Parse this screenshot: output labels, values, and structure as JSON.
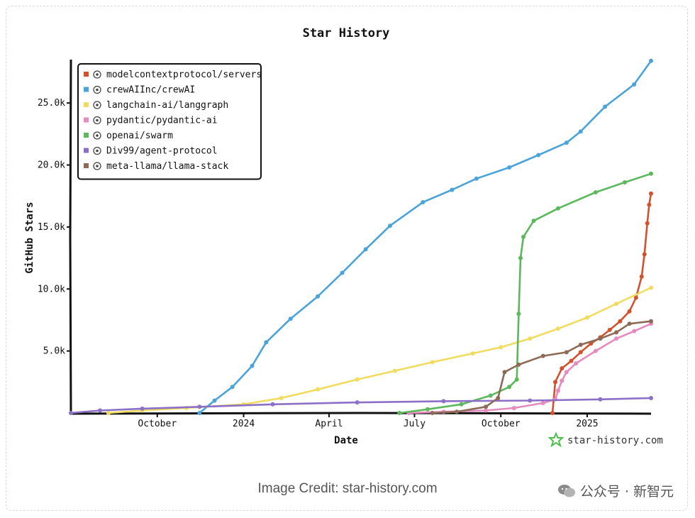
{
  "chart_data": {
    "type": "line",
    "title": "Star History",
    "xlabel": "Date",
    "ylabel": "GitHub Stars",
    "x_range": [
      "2023-07-01",
      "2025-03-10"
    ],
    "ylim": [
      0,
      28500
    ],
    "x_ticks": [
      {
        "label": "October",
        "date": "2023-10-01"
      },
      {
        "label": "2024",
        "date": "2024-01-01"
      },
      {
        "label": "April",
        "date": "2024-04-01"
      },
      {
        "label": "July",
        "date": "2024-07-01"
      },
      {
        "label": "October",
        "date": "2024-10-01"
      },
      {
        "label": "2025",
        "date": "2025-01-01"
      }
    ],
    "y_ticks": [
      {
        "label": "5.0k",
        "value": 5000
      },
      {
        "label": "10.0k",
        "value": 10000
      },
      {
        "label": "15.0k",
        "value": 15000
      },
      {
        "label": "20.0k",
        "value": 20000
      },
      {
        "label": "25.0k",
        "value": 25000
      }
    ],
    "legend_position": "top-left",
    "series": [
      {
        "name": "modelcontextprotocol/servers",
        "color": "#d2522e",
        "icon": "mcp-logo-icon",
        "points": [
          [
            "2024-11-25",
            0
          ],
          [
            "2024-11-28",
            2500
          ],
          [
            "2024-12-05",
            3600
          ],
          [
            "2024-12-15",
            4200
          ],
          [
            "2024-12-25",
            4900
          ],
          [
            "2025-01-05",
            5600
          ],
          [
            "2025-01-15",
            6100
          ],
          [
            "2025-01-25",
            6700
          ],
          [
            "2025-02-05",
            7400
          ],
          [
            "2025-02-15",
            8200
          ],
          [
            "2025-02-22",
            9300
          ],
          [
            "2025-02-28",
            11000
          ],
          [
            "2025-03-03",
            12800
          ],
          [
            "2025-03-06",
            15300
          ],
          [
            "2025-03-08",
            16800
          ],
          [
            "2025-03-10",
            17700
          ]
        ]
      },
      {
        "name": "crewAIInc/crewAI",
        "color": "#4aa3d9",
        "icon": "crewai-logo-icon",
        "points": [
          [
            "2023-11-15",
            0
          ],
          [
            "2023-12-01",
            1000
          ],
          [
            "2023-12-20",
            2100
          ],
          [
            "2024-01-10",
            3800
          ],
          [
            "2024-01-25",
            5700
          ],
          [
            "2024-02-20",
            7600
          ],
          [
            "2024-03-20",
            9400
          ],
          [
            "2024-04-15",
            11300
          ],
          [
            "2024-05-10",
            13200
          ],
          [
            "2024-06-05",
            15100
          ],
          [
            "2024-07-10",
            17000
          ],
          [
            "2024-08-10",
            18000
          ],
          [
            "2024-09-05",
            18900
          ],
          [
            "2024-10-10",
            19800
          ],
          [
            "2024-11-10",
            20800
          ],
          [
            "2024-12-10",
            21800
          ],
          [
            "2024-12-25",
            22700
          ],
          [
            "2025-01-20",
            24700
          ],
          [
            "2025-02-20",
            26500
          ],
          [
            "2025-03-10",
            28400
          ]
        ]
      },
      {
        "name": "langchain-ai/langgraph",
        "color": "#f0dc5f",
        "icon": "langgraph-logo-icon",
        "points": [
          [
            "2023-08-10",
            0
          ],
          [
            "2023-09-15",
            200
          ],
          [
            "2023-11-01",
            400
          ],
          [
            "2024-01-01",
            700
          ],
          [
            "2024-02-10",
            1200
          ],
          [
            "2024-03-20",
            1900
          ],
          [
            "2024-05-01",
            2700
          ],
          [
            "2024-06-10",
            3400
          ],
          [
            "2024-07-20",
            4100
          ],
          [
            "2024-09-01",
            4800
          ],
          [
            "2024-10-01",
            5300
          ],
          [
            "2024-11-01",
            6000
          ],
          [
            "2024-12-01",
            6800
          ],
          [
            "2025-01-01",
            7700
          ],
          [
            "2025-02-01",
            8800
          ],
          [
            "2025-03-10",
            10100
          ]
        ]
      },
      {
        "name": "pydantic/pydantic-ai",
        "color": "#e58bbf",
        "icon": "pydantic-logo-icon",
        "points": [
          [
            "2024-06-25",
            0
          ],
          [
            "2024-08-01",
            100
          ],
          [
            "2024-09-15",
            200
          ],
          [
            "2024-10-15",
            400
          ],
          [
            "2024-11-15",
            800
          ],
          [
            "2024-11-28",
            1100
          ],
          [
            "2024-12-01",
            1800
          ],
          [
            "2024-12-05",
            2600
          ],
          [
            "2024-12-10",
            3300
          ],
          [
            "2024-12-20",
            4000
          ],
          [
            "2025-01-10",
            5000
          ],
          [
            "2025-02-01",
            6000
          ],
          [
            "2025-02-20",
            6600
          ],
          [
            "2025-03-10",
            7200
          ]
        ]
      },
      {
        "name": "openai/swarm",
        "color": "#5cb85c",
        "icon": "openai-logo-icon",
        "points": [
          [
            "2024-06-15",
            0
          ],
          [
            "2024-07-15",
            300
          ],
          [
            "2024-08-20",
            700
          ],
          [
            "2024-09-20",
            1400
          ],
          [
            "2024-10-10",
            2100
          ],
          [
            "2024-10-18",
            2700
          ],
          [
            "2024-10-20",
            8000
          ],
          [
            "2024-10-22",
            12500
          ],
          [
            "2024-10-25",
            14200
          ],
          [
            "2024-11-05",
            15500
          ],
          [
            "2024-12-01",
            16500
          ],
          [
            "2025-01-10",
            17800
          ],
          [
            "2025-02-10",
            18600
          ],
          [
            "2025-03-10",
            19300
          ]
        ]
      },
      {
        "name": "Div99/agent-protocol",
        "color": "#8c6fc7",
        "icon": "agent-protocol-logo-icon",
        "points": [
          [
            "2023-07-01",
            0
          ],
          [
            "2023-08-01",
            200
          ],
          [
            "2023-09-15",
            350
          ],
          [
            "2023-11-15",
            500
          ],
          [
            "2024-02-01",
            700
          ],
          [
            "2024-05-01",
            850
          ],
          [
            "2024-08-01",
            950
          ],
          [
            "2024-11-01",
            1000
          ],
          [
            "2025-01-15",
            1100
          ],
          [
            "2025-03-10",
            1200
          ]
        ]
      },
      {
        "name": "meta-llama/llama-stack",
        "color": "#8d6a55",
        "icon": "meta-logo-icon",
        "points": [
          [
            "2024-07-20",
            0
          ],
          [
            "2024-08-15",
            100
          ],
          [
            "2024-09-15",
            500
          ],
          [
            "2024-09-28",
            1200
          ],
          [
            "2024-10-05",
            3300
          ],
          [
            "2024-10-20",
            3900
          ],
          [
            "2024-11-15",
            4600
          ],
          [
            "2024-12-10",
            4900
          ],
          [
            "2024-12-25",
            5500
          ],
          [
            "2025-01-15",
            6000
          ],
          [
            "2025-02-01",
            6500
          ],
          [
            "2025-02-15",
            7200
          ],
          [
            "2025-03-10",
            7400
          ]
        ]
      }
    ]
  },
  "watermark": {
    "text": "star-history.com",
    "icon": "star-history-logo-icon"
  },
  "credit": "Image Credit: star-history.com",
  "wechat": {
    "icon": "wechat-icon",
    "text": "公众号 · 新智元"
  }
}
